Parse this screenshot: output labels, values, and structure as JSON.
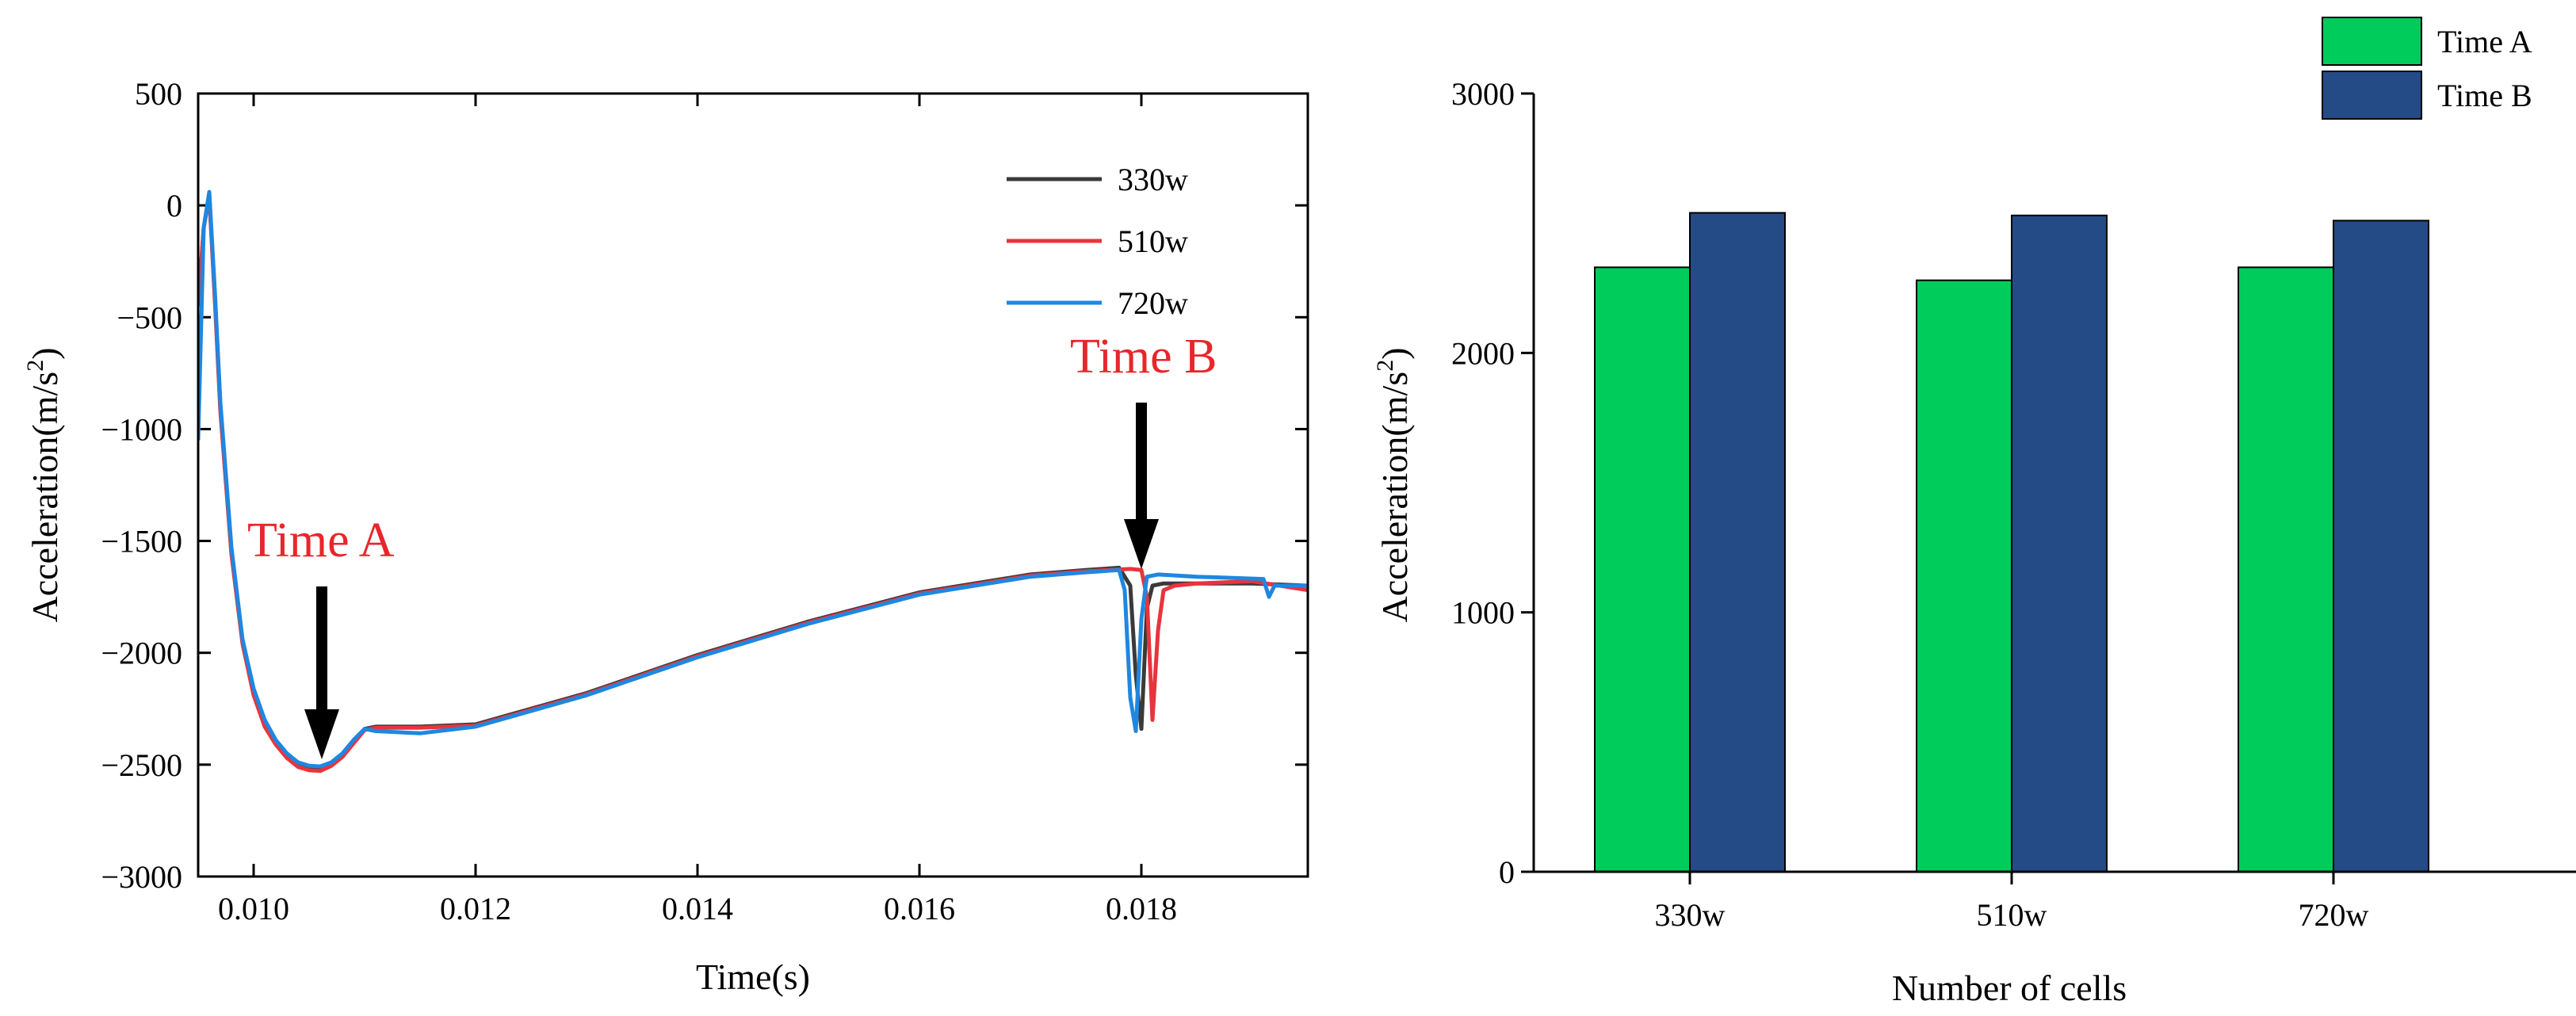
{
  "colors": {
    "line_330w": "#3a3a3a",
    "line_510w": "#e8343c",
    "line_720w": "#1f87e0",
    "annotation": "#e8262b",
    "bar_time_a": "#00cc5c",
    "bar_time_b": "#254b86"
  },
  "chart_data": [
    {
      "type": "line",
      "xlabel": "Time(s)",
      "ylabel": "Acceleration(m/s²)",
      "ylabel_main": "Acceleration(m/s",
      "ylabel_sup": "2",
      "ylabel_end": ")",
      "xlim": [
        0.0095,
        0.0195
      ],
      "ylim": [
        -3000,
        500
      ],
      "xticks": [
        0.01,
        0.012,
        0.014,
        0.016,
        0.018
      ],
      "xtick_labels": [
        "0.010",
        "0.012",
        "0.014",
        "0.016",
        "0.018"
      ],
      "yticks": [
        500,
        0,
        -500,
        -1000,
        -1500,
        -2000,
        -2500,
        -3000
      ],
      "ytick_labels": [
        "500",
        "0",
        "−500",
        "−1000",
        "−1500",
        "−2000",
        "−2500",
        "−3000"
      ],
      "legend": [
        "330w",
        "510w",
        "720w"
      ],
      "legend_position": "top-right",
      "annotations": [
        {
          "text": "Time A",
          "x": 0.0106,
          "y": -2520
        },
        {
          "text": "Time B",
          "x": 0.01795,
          "y": -1600
        }
      ],
      "series": [
        {
          "name": "330w",
          "x": [
            0.0095,
            0.00955,
            0.0096,
            0.00965,
            0.0097,
            0.0098,
            0.0099,
            0.01,
            0.0101,
            0.0102,
            0.0103,
            0.0104,
            0.0105,
            0.0106,
            0.0107,
            0.0108,
            0.0109,
            0.011,
            0.0111,
            0.0115,
            0.012,
            0.013,
            0.014,
            0.015,
            0.016,
            0.017,
            0.0175,
            0.0178,
            0.0179,
            0.01795,
            0.018,
            0.01805,
            0.0181,
            0.0182,
            0.0185,
            0.019,
            0.0195
          ],
          "y": [
            -450,
            -100,
            50,
            -400,
            -900,
            -1550,
            -1950,
            -2180,
            -2320,
            -2400,
            -2460,
            -2500,
            -2515,
            -2520,
            -2500,
            -2460,
            -2400,
            -2340,
            -2330,
            -2330,
            -2320,
            -2180,
            -2010,
            -1860,
            -1730,
            -1650,
            -1630,
            -1620,
            -1700,
            -2100,
            -2340,
            -1800,
            -1700,
            -1690,
            -1690,
            -1690,
            -1700
          ]
        },
        {
          "name": "510w",
          "x": [
            0.0095,
            0.00955,
            0.0096,
            0.00965,
            0.0097,
            0.0098,
            0.0099,
            0.01,
            0.0101,
            0.0102,
            0.0103,
            0.0104,
            0.0105,
            0.0106,
            0.0107,
            0.0108,
            0.0109,
            0.011,
            0.0111,
            0.0115,
            0.012,
            0.013,
            0.014,
            0.015,
            0.016,
            0.017,
            0.0175,
            0.0179,
            0.018,
            0.01805,
            0.0181,
            0.01815,
            0.0182,
            0.0183,
            0.0185,
            0.019,
            0.0195
          ],
          "y": [
            -450,
            -100,
            40,
            -420,
            -920,
            -1560,
            -1960,
            -2190,
            -2330,
            -2410,
            -2470,
            -2510,
            -2525,
            -2528,
            -2505,
            -2465,
            -2405,
            -2345,
            -2335,
            -2335,
            -2325,
            -2185,
            -2015,
            -1865,
            -1735,
            -1655,
            -1635,
            -1625,
            -1630,
            -1750,
            -2300,
            -1900,
            -1720,
            -1700,
            -1690,
            -1680,
            -1720
          ]
        },
        {
          "name": "720w",
          "x": [
            0.0095,
            0.00955,
            0.0096,
            0.00965,
            0.0097,
            0.0098,
            0.0099,
            0.01,
            0.0101,
            0.0102,
            0.0103,
            0.0104,
            0.0105,
            0.0106,
            0.0107,
            0.0108,
            0.0109,
            0.011,
            0.0111,
            0.0115,
            0.012,
            0.013,
            0.014,
            0.015,
            0.016,
            0.017,
            0.0175,
            0.0178,
            0.01785,
            0.0179,
            0.01795,
            0.018,
            0.01805,
            0.01815,
            0.0185,
            0.0191,
            0.01915,
            0.0192,
            0.0195
          ],
          "y": [
            -1050,
            -100,
            60,
            -380,
            -880,
            -1530,
            -1940,
            -2160,
            -2300,
            -2390,
            -2450,
            -2490,
            -2505,
            -2508,
            -2490,
            -2450,
            -2390,
            -2340,
            -2350,
            -2360,
            -2330,
            -2190,
            -2020,
            -1870,
            -1740,
            -1660,
            -1640,
            -1630,
            -1720,
            -2200,
            -2350,
            -1850,
            -1660,
            -1650,
            -1660,
            -1670,
            -1750,
            -1700,
            -1700
          ]
        }
      ]
    },
    {
      "type": "bar",
      "xlabel": "Number of cells",
      "ylabel": "Acceleration(m/s²)",
      "ylabel_main": "Acceleration(m/s",
      "ylabel_sup": "2",
      "ylabel_end": ")",
      "categories": [
        "330w",
        "510w",
        "720w"
      ],
      "ylim": [
        0,
        3000
      ],
      "yticks": [
        0,
        1000,
        2000,
        3000
      ],
      "ytick_labels": [
        "0",
        "1000",
        "2000",
        "3000"
      ],
      "legend": [
        "Time A",
        "Time B"
      ],
      "legend_position": "top-right",
      "series": [
        {
          "name": "Time A",
          "values": [
            2330,
            2280,
            2330
          ]
        },
        {
          "name": "Time B",
          "values": [
            2540,
            2530,
            2510
          ]
        }
      ]
    }
  ]
}
